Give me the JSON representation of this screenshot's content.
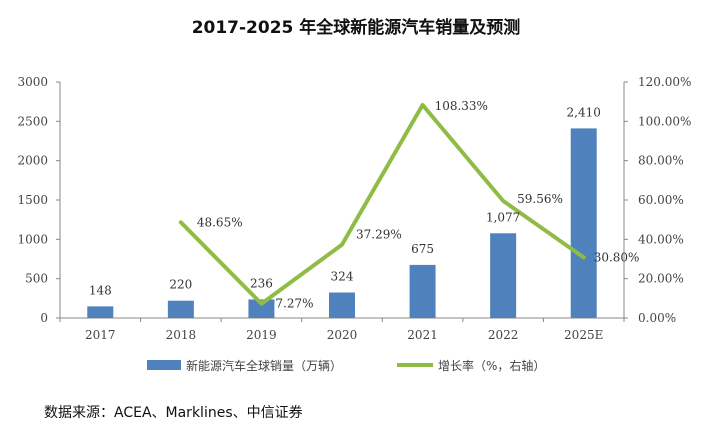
{
  "chart_data": {
    "type": "bar",
    "title": "2017-2025 年全球新能源汽车销量及预测",
    "categories": [
      "2017",
      "2018",
      "2019",
      "2020",
      "2021",
      "2022",
      "2025E"
    ],
    "series": [
      {
        "name": "新能源汽车全球销量（万辆）",
        "type": "bar",
        "axis": "left",
        "color": "#4f81bd",
        "values": [
          148,
          220,
          236,
          324,
          675,
          1077,
          2410
        ],
        "labels": [
          "148",
          "220",
          "236",
          "324",
          "675",
          "1,077",
          "2,410"
        ]
      },
      {
        "name": "增长率（%，右轴）",
        "type": "line",
        "axis": "right",
        "color": "#8fbc45",
        "values": [
          null,
          48.65,
          7.27,
          37.29,
          108.33,
          59.56,
          30.8
        ],
        "labels": [
          "",
          "48.65%",
          "7.27%",
          "37.29%",
          "108.33%",
          "59.56%",
          "30.80%"
        ]
      }
    ],
    "y_left": {
      "lim": [
        0,
        3000
      ],
      "ticks": [
        "0",
        "500",
        "1000",
        "1500",
        "2000",
        "2500",
        "3000"
      ]
    },
    "y_right": {
      "lim": [
        0,
        120
      ],
      "ticks": [
        "0.00%",
        "20.00%",
        "40.00%",
        "60.00%",
        "80.00%",
        "100.00%",
        "120.00%"
      ]
    },
    "grid": false,
    "legend_position": "bottom"
  },
  "source_text": "数据来源：ACEA、Marklines、中信证券"
}
